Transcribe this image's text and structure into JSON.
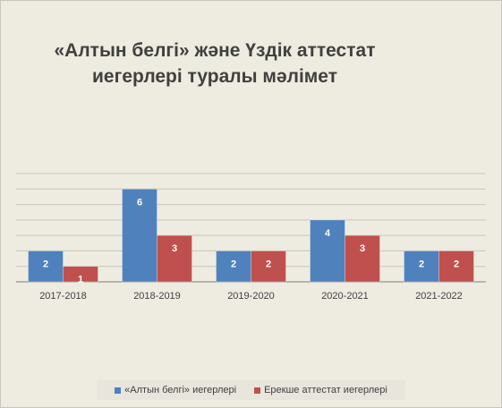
{
  "chart_data": {
    "type": "bar",
    "title": "«Алтын белгі» және Үздік аттестат иегерлері туралы мәлімет",
    "title_lines": [
      "«Алтын белгі» және Үздік аттестат",
      "иегерлері туралы мәлімет"
    ],
    "categories": [
      "2017-2018",
      "2018-2019",
      "2019-2020",
      "2020-2021",
      "2021-2022"
    ],
    "series": [
      {
        "name": "«Алтын белгі» иегерлері",
        "color": "#4f81bd",
        "values": [
          2,
          6,
          2,
          4,
          2
        ]
      },
      {
        "name": "Ерекше  аттестат иегерлері",
        "color": "#c0504d",
        "values": [
          1,
          3,
          2,
          3,
          2
        ]
      }
    ],
    "ylim": [
      0,
      7
    ],
    "grid": true,
    "data_labels": true,
    "legend_position": "bottom"
  }
}
